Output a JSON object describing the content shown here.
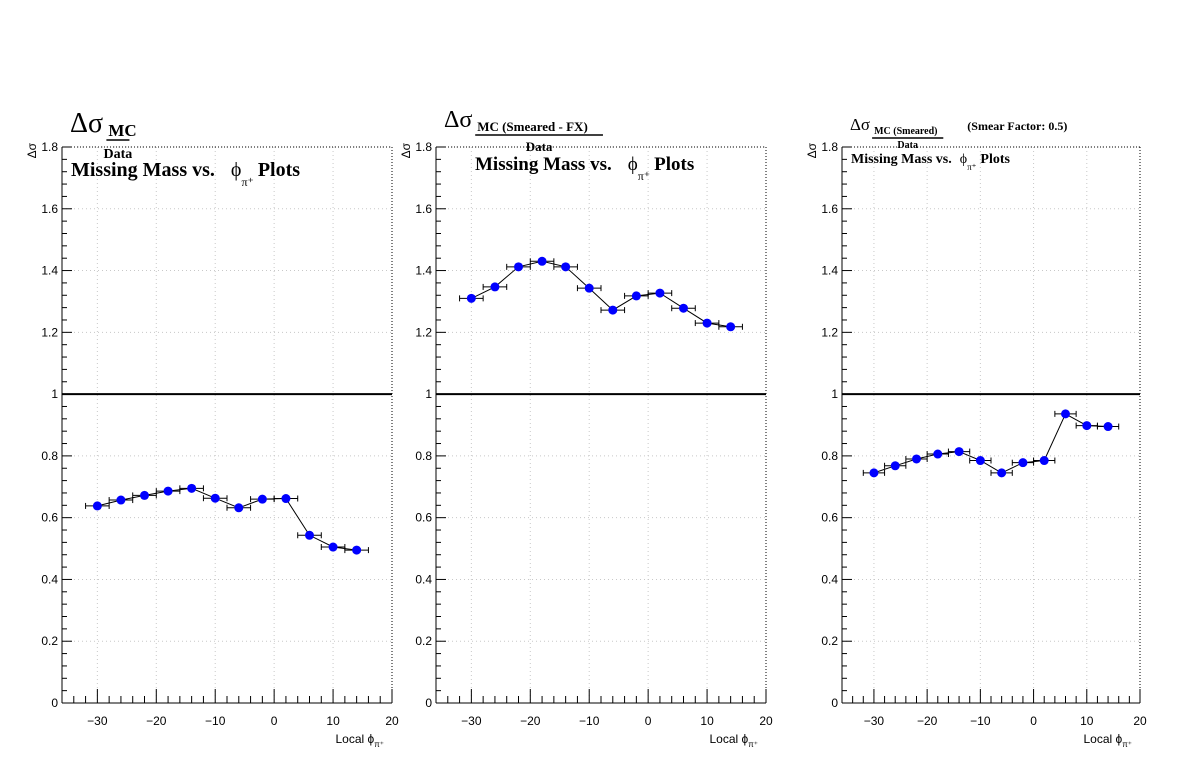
{
  "chart_data": [
    {
      "type": "scatter",
      "title_main": "Δσ",
      "title_numerator": "MC",
      "title_denominator": "Data",
      "title_extra": "",
      "subtitle_prefix": "Missing Mass vs.",
      "subtitle_phi": "ϕ",
      "subtitle_sub": "π⁺",
      "subtitle_suffix": "Plots",
      "ylabel": "Δσ",
      "xlabel_prefix": "Local ϕ",
      "xlabel_sub": "π⁺",
      "xlim": [
        -36,
        20
      ],
      "ylim": [
        0,
        1.8
      ],
      "x_ticks": [
        "−30",
        "−20",
        "−10",
        "0",
        "10",
        "20"
      ],
      "y_ticks": [
        "0",
        "0.2",
        "0.4",
        "0.6",
        "0.8",
        "1",
        "1.2",
        "1.4",
        "1.6",
        "1.8"
      ],
      "reference_line": 1,
      "grid": true,
      "x_error": 2,
      "series": [
        {
          "x": [
            -30,
            -26,
            -22,
            -18,
            -14,
            -10,
            -6,
            -2,
            2,
            6,
            10,
            14
          ],
          "y": [
            0.638,
            0.657,
            0.672,
            0.686,
            0.695,
            0.663,
            0.632,
            0.66,
            0.662,
            0.543,
            0.505,
            0.495
          ],
          "color": "#0000ff"
        }
      ]
    },
    {
      "type": "scatter",
      "title_main": "Δσ",
      "title_numerator": "MC (Smeared - FX)",
      "title_denominator": "Data",
      "title_extra": "",
      "subtitle_prefix": "Missing Mass vs.",
      "subtitle_phi": "ϕ",
      "subtitle_sub": "π⁺",
      "subtitle_suffix": "Plots",
      "ylabel": "Δσ",
      "xlabel_prefix": "Local ϕ",
      "xlabel_sub": "π⁺",
      "xlim": [
        -36,
        20
      ],
      "ylim": [
        0,
        1.8
      ],
      "x_ticks": [
        "−30",
        "−20",
        "−10",
        "0",
        "10",
        "20"
      ],
      "y_ticks": [
        "0",
        "0.2",
        "0.4",
        "0.6",
        "0.8",
        "1",
        "1.2",
        "1.4",
        "1.6",
        "1.8"
      ],
      "reference_line": 1,
      "grid": true,
      "x_error": 2,
      "series": [
        {
          "x": [
            -30,
            -26,
            -22,
            -18,
            -14,
            -10,
            -6,
            -2,
            2,
            6,
            10,
            14
          ],
          "y": [
            1.31,
            1.347,
            1.412,
            1.43,
            1.412,
            1.343,
            1.272,
            1.318,
            1.327,
            1.278,
            1.23,
            1.218
          ],
          "color": "#0000ff"
        }
      ]
    },
    {
      "type": "scatter",
      "title_main": "Δσ",
      "title_numerator": "MC (Smeared)",
      "title_denominator": "Data",
      "title_extra": "(Smear Factor: 0.5)",
      "subtitle_prefix": "Missing Mass vs.",
      "subtitle_phi": "ϕ",
      "subtitle_sub": "π⁺",
      "subtitle_suffix": "Plots",
      "ylabel": "Δσ",
      "xlabel_prefix": "Local ϕ",
      "xlabel_sub": "π⁺",
      "xlim": [
        -36,
        20
      ],
      "ylim": [
        0,
        1.8
      ],
      "x_ticks": [
        "−30",
        "−20",
        "−10",
        "0",
        "10",
        "20"
      ],
      "y_ticks": [
        "0",
        "0.2",
        "0.4",
        "0.6",
        "0.8",
        "1",
        "1.2",
        "1.4",
        "1.6",
        "1.8"
      ],
      "reference_line": 1,
      "grid": true,
      "x_error": 2,
      "series": [
        {
          "x": [
            -30,
            -26,
            -22,
            -18,
            -14,
            -10,
            -6,
            -2,
            2,
            6,
            10,
            14
          ],
          "y": [
            0.745,
            0.768,
            0.79,
            0.806,
            0.814,
            0.785,
            0.745,
            0.778,
            0.785,
            0.936,
            0.898,
            0.895
          ],
          "color": "#0000ff"
        }
      ]
    }
  ]
}
